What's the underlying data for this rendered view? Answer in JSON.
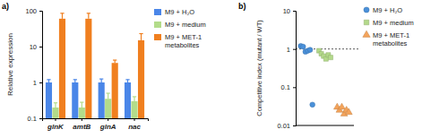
{
  "chart_data": [
    {
      "type": "bar",
      "title": "a)",
      "y_label": "Relative expression",
      "categories": [
        "glnK",
        "amtB",
        "glnA",
        "nac"
      ],
      "log": "y",
      "ylim": [
        0.1,
        100
      ],
      "yticks": [
        0.1,
        1,
        10,
        100
      ],
      "legend": "right",
      "series": [
        {
          "name": "M9 + H₂O",
          "color": "#4a86e8",
          "values": [
            1,
            1,
            1,
            1
          ],
          "errors": [
            0.2,
            0.2,
            0.25,
            0.2
          ]
        },
        {
          "name": "M9 + medium",
          "color": "#b3dc8a",
          "values": [
            0.2,
            0.2,
            0.35,
            0.3
          ],
          "errors": [
            0.07,
            0.08,
            0.15,
            0.1
          ]
        },
        {
          "name": "M9 + MET-1 metabolites",
          "color": "#f07f1f",
          "values": [
            60,
            60,
            3.5,
            15
          ],
          "errors": [
            25,
            25,
            0.7,
            8
          ]
        }
      ]
    },
    {
      "type": "scatter",
      "title": "b)",
      "y_label": "Competitive index (mutant / WT)",
      "log": "y",
      "ylim": [
        0.01,
        10
      ],
      "yticks": [
        0.01,
        0.1,
        1,
        10
      ],
      "tick_labels": "y",
      "legend": "right",
      "hline": 1,
      "series": [
        {
          "name": "M9 + H₂O",
          "color": "#4a90d9",
          "marker": "circle",
          "values": [
            1.2,
            1.15,
            0.85,
            0.9,
            0.95,
            0.035
          ]
        },
        {
          "name": "M9 + medium",
          "color": "#b3d98a",
          "marker": "square",
          "values": [
            0.9,
            0.75,
            0.65,
            0.55,
            0.7,
            0.6
          ]
        },
        {
          "name": "M9 + MET-1 metabolites",
          "color": "#f4a35a",
          "marker": "triangle",
          "values": [
            0.03,
            0.025,
            0.03,
            0.02,
            0.025,
            0.022
          ]
        }
      ]
    }
  ]
}
